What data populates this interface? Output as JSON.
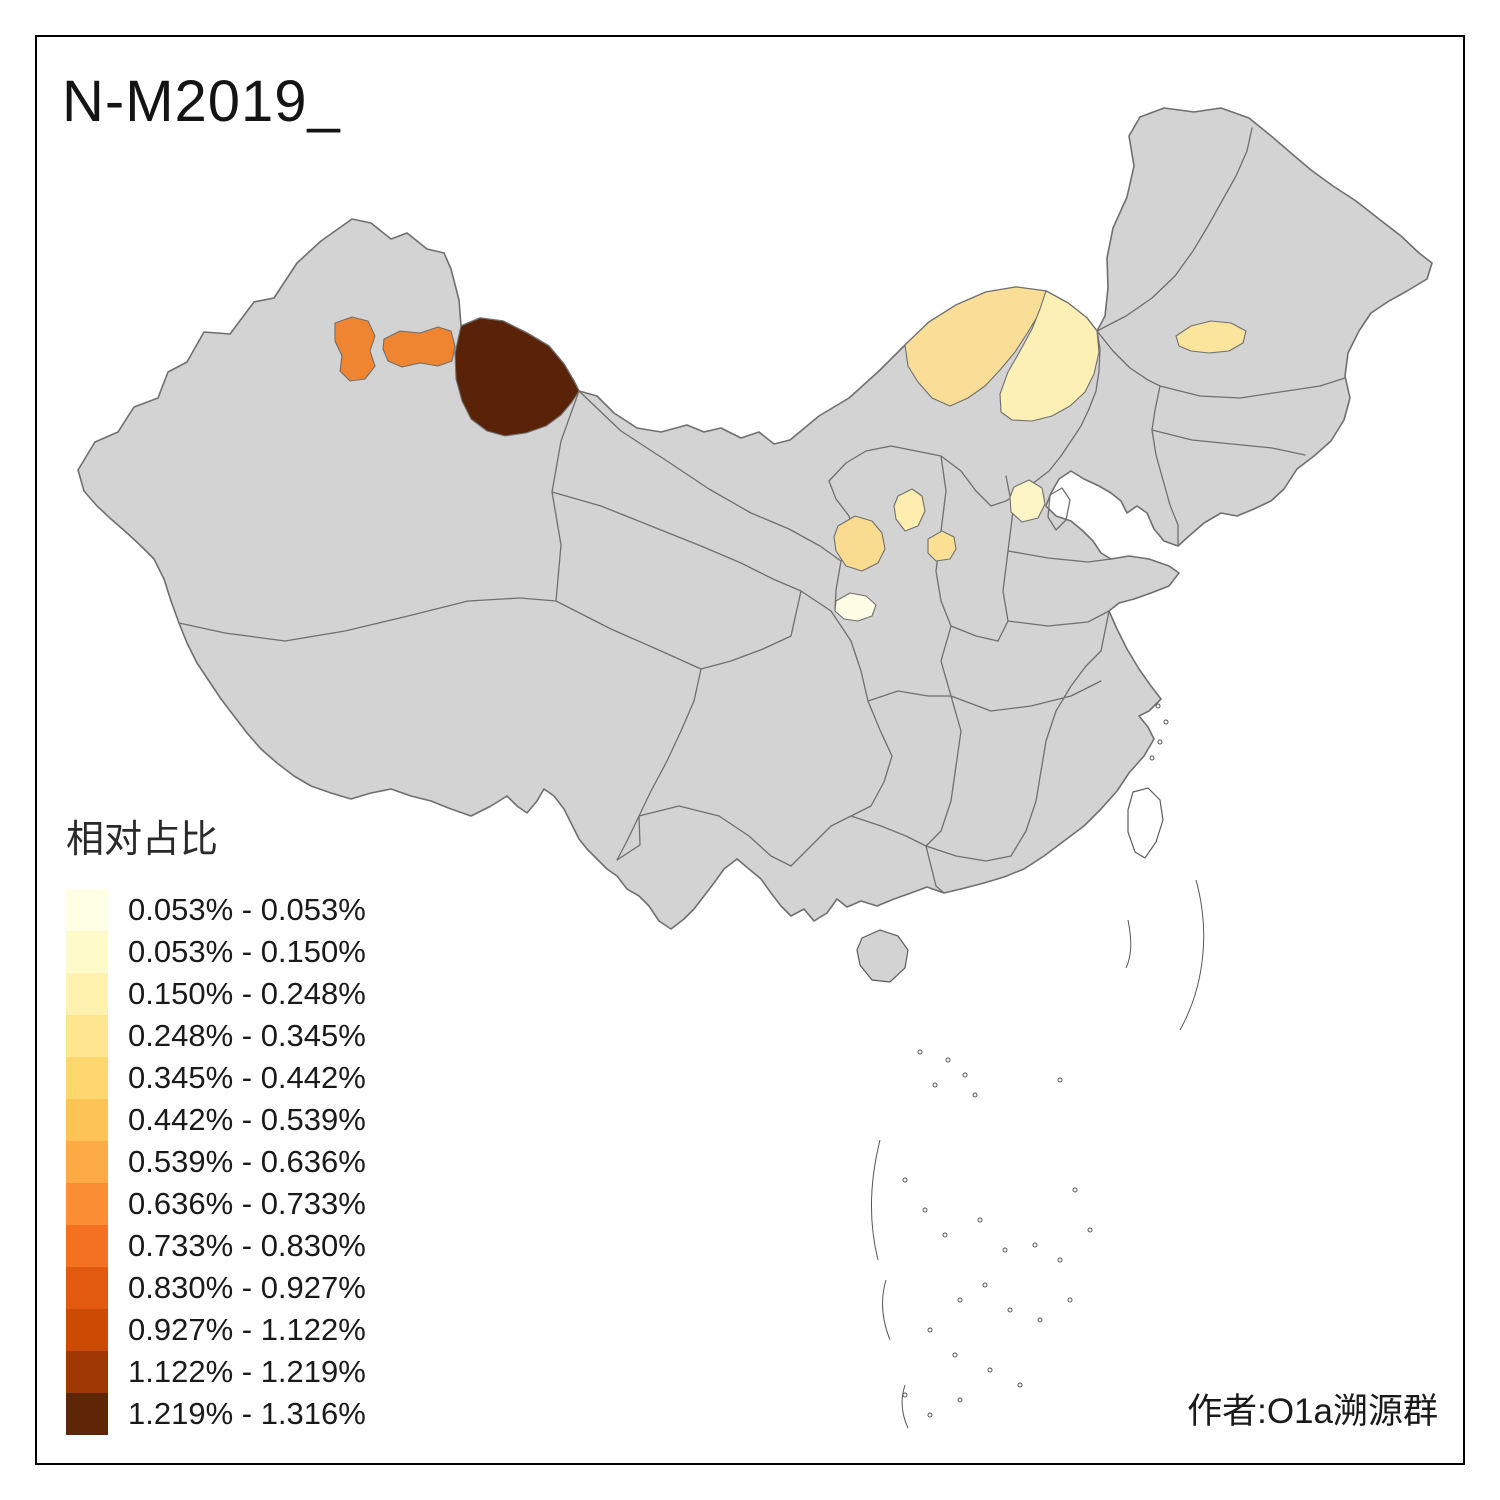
{
  "title": "N-M2019_",
  "attribution": "作者:O1a溯源群",
  "legend": {
    "title": "相对占比",
    "bins": [
      {
        "range": "0.053% - 0.053%",
        "color": "#FFFFE5"
      },
      {
        "range": "0.053% - 0.150%",
        "color": "#FFFAC9"
      },
      {
        "range": "0.150% - 0.248%",
        "color": "#FEF2AE"
      },
      {
        "range": "0.248% - 0.345%",
        "color": "#FEE691"
      },
      {
        "range": "0.345% - 0.442%",
        "color": "#FED86E"
      },
      {
        "range": "0.442% - 0.539%",
        "color": "#FEC355"
      },
      {
        "range": "0.539% - 0.636%",
        "color": "#FEAA45"
      },
      {
        "range": "0.636% - 0.733%",
        "color": "#FB8D34"
      },
      {
        "range": "0.733% - 0.830%",
        "color": "#F37121"
      },
      {
        "range": "0.830% - 0.927%",
        "color": "#E25A10"
      },
      {
        "range": "0.927% - 1.122%",
        "color": "#CB4A04"
      },
      {
        "range": "1.122% - 1.219%",
        "color": "#A03803"
      },
      {
        "range": "1.219% - 1.316%",
        "color": "#5E2506"
      }
    ]
  },
  "map": {
    "land_color": "#d3d3d3",
    "border_color": "#6f6f6f",
    "regions": [
      {
        "color": "#5A2206"
      },
      {
        "color": "#EF8531"
      },
      {
        "color": "#EF8531"
      },
      {
        "color": "#FADE98"
      },
      {
        "color": "#FCF0B4"
      },
      {
        "color": "#FBE59C"
      },
      {
        "color": "#FDF5C6"
      },
      {
        "color": "#FDEEAF"
      },
      {
        "color": "#F9DC90"
      },
      {
        "color": "#FBE094"
      },
      {
        "color": "#FFFDE5"
      }
    ]
  }
}
